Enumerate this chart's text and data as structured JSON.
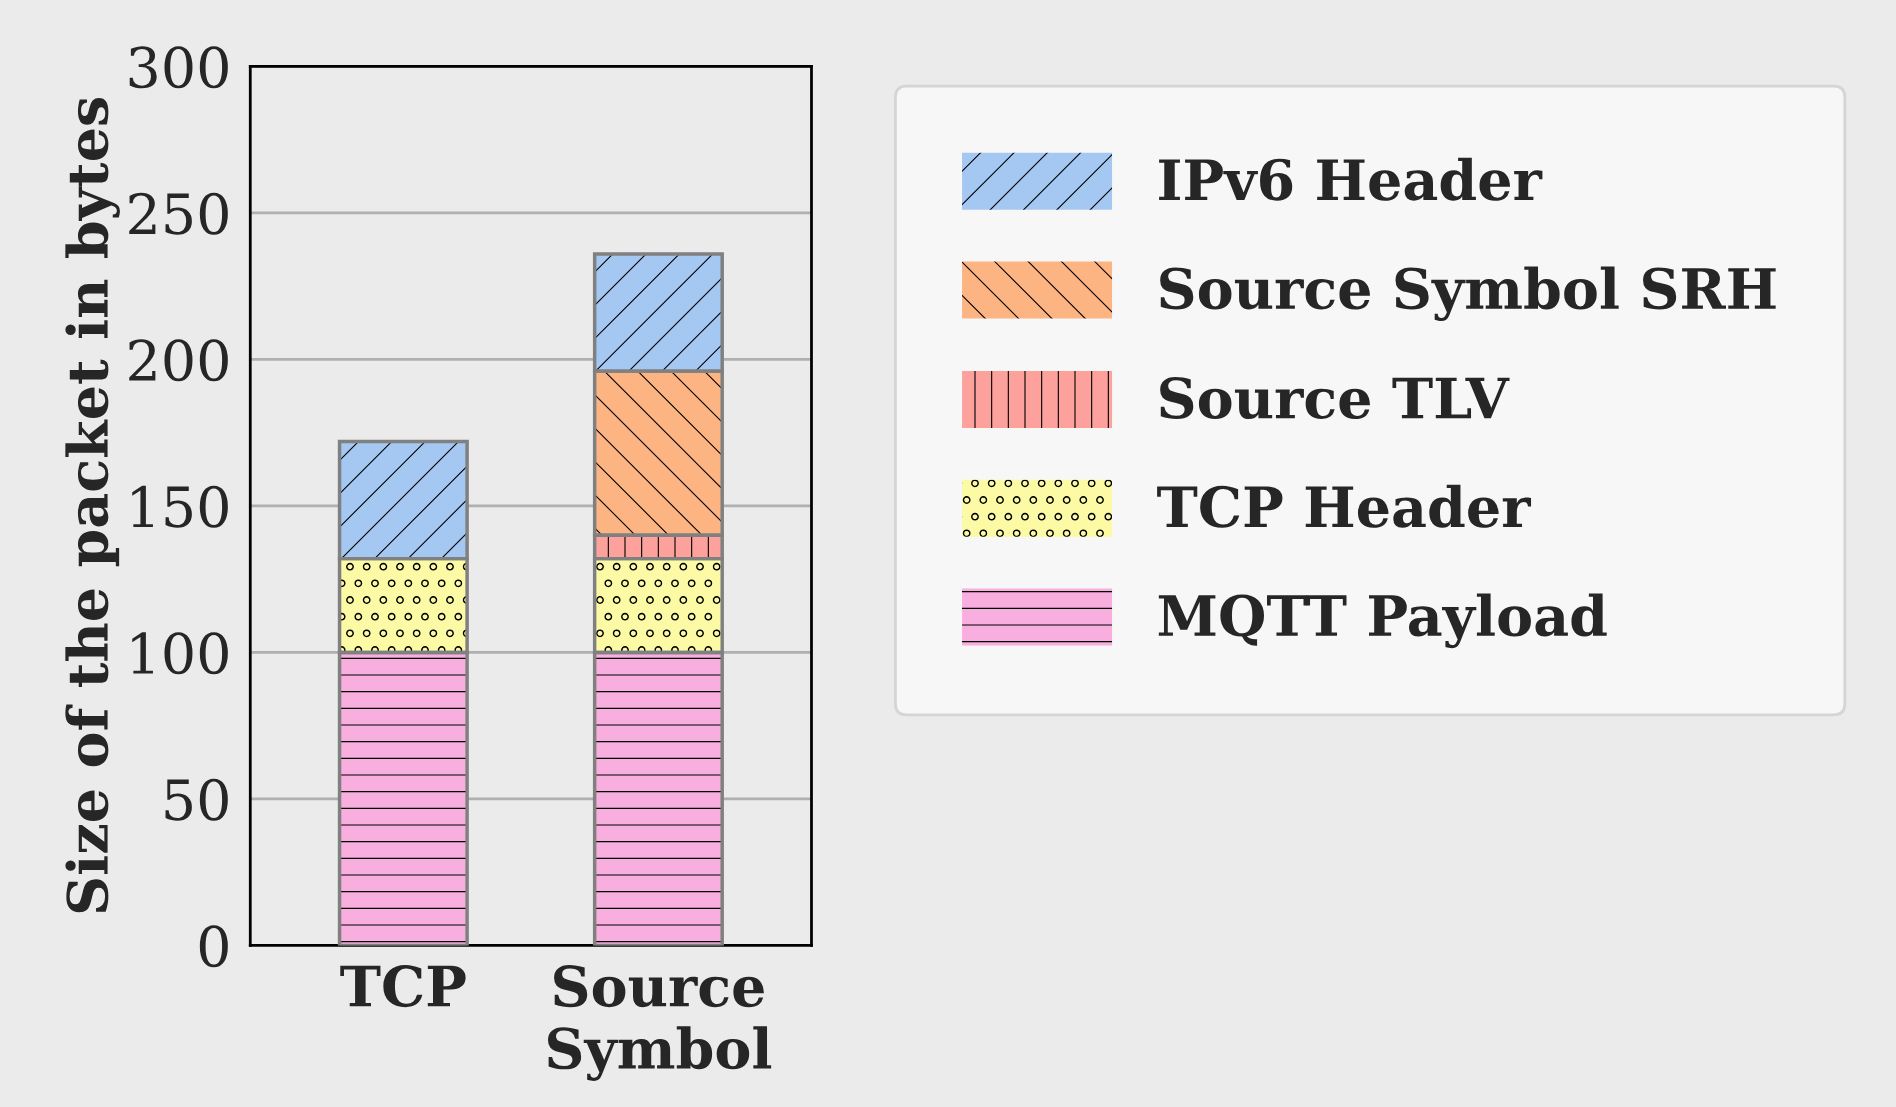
{
  "chart_data": {
    "type": "bar",
    "stacked": true,
    "ylabel": "Size of the packet in bytes",
    "categories": [
      "TCP",
      "Source\nSymbol"
    ],
    "series": [
      {
        "name": "MQTT Payload",
        "color": "#f9aee0",
        "values": [
          100,
          100
        ]
      },
      {
        "name": "TCP Header",
        "color": "#fdfaa6",
        "values": [
          32,
          32
        ]
      },
      {
        "name": "Source TLV",
        "color": "#fca19c",
        "values": [
          null,
          8
        ]
      },
      {
        "name": "Source Symbol SRH",
        "color": "#fdb483",
        "values": [
          null,
          56
        ]
      },
      {
        "name": "IPv6 Header",
        "color": "#a4c8f2",
        "values": [
          40,
          40
        ]
      }
    ],
    "ylim": [
      0,
      300
    ],
    "yticks": [
      0,
      50,
      100,
      150,
      200,
      250,
      300
    ],
    "grid": "y",
    "legend": "right"
  }
}
